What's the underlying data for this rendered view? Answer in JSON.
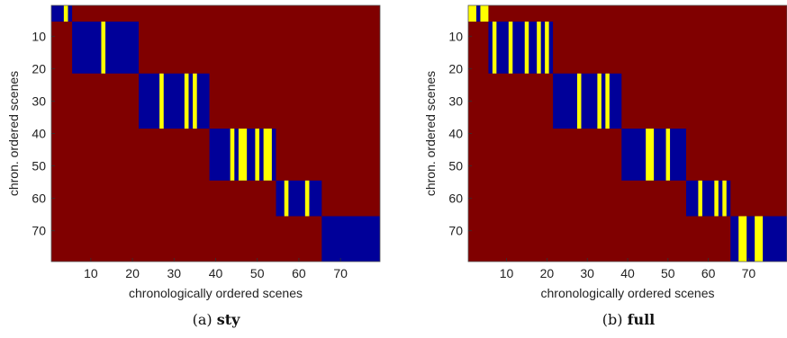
{
  "chart_data": [
    {
      "type": "heatmap",
      "caption_prefix": "(a) ",
      "caption_name": "sty",
      "xlabel": "chronologically ordered scenes",
      "ylabel": "chron. ordered scenes",
      "xticks": [
        10,
        20,
        30,
        40,
        50,
        60,
        70
      ],
      "yticks": [
        10,
        20,
        30,
        40,
        50,
        60,
        70
      ],
      "xlim": [
        0.5,
        79.5
      ],
      "ylim": [
        0.5,
        79.5
      ],
      "colors": {
        "background": "#800000",
        "block": "#000099",
        "highlight": "#ffff00"
      },
      "blocks": [
        [
          1,
          5
        ],
        [
          6,
          21
        ],
        [
          22,
          38
        ],
        [
          39,
          54
        ],
        [
          55,
          65
        ],
        [
          66,
          79
        ]
      ],
      "highlights": [
        [
          4,
          4
        ],
        [
          13,
          13
        ],
        [
          27,
          27
        ],
        [
          33,
          33
        ],
        [
          35,
          35
        ],
        [
          44,
          44
        ],
        [
          46,
          47
        ],
        [
          50,
          50
        ],
        [
          52,
          53
        ],
        [
          57,
          57
        ],
        [
          62,
          62
        ]
      ]
    },
    {
      "type": "heatmap",
      "caption_prefix": "(b) ",
      "caption_name": "full",
      "xlabel": "chronologically ordered scenes",
      "ylabel": "chron. ordered scenes",
      "xticks": [
        10,
        20,
        30,
        40,
        50,
        60,
        70
      ],
      "yticks": [
        10,
        20,
        30,
        40,
        50,
        60,
        70
      ],
      "xlim": [
        0.5,
        79.5
      ],
      "ylim": [
        0.5,
        79.5
      ],
      "colors": {
        "background": "#800000",
        "block": "#000099",
        "highlight": "#ffff00"
      },
      "blocks": [
        [
          1,
          5
        ],
        [
          6,
          21
        ],
        [
          22,
          38
        ],
        [
          39,
          54
        ],
        [
          55,
          65
        ],
        [
          66,
          79
        ]
      ],
      "highlights": [
        [
          1,
          2
        ],
        [
          4,
          5
        ],
        [
          7,
          7
        ],
        [
          11,
          11
        ],
        [
          15,
          15
        ],
        [
          18,
          18
        ],
        [
          20,
          20
        ],
        [
          28,
          28
        ],
        [
          33,
          33
        ],
        [
          35,
          35
        ],
        [
          45,
          46
        ],
        [
          50,
          50
        ],
        [
          58,
          58
        ],
        [
          62,
          62
        ],
        [
          64,
          64
        ],
        [
          68,
          69
        ],
        [
          72,
          73
        ]
      ]
    }
  ]
}
